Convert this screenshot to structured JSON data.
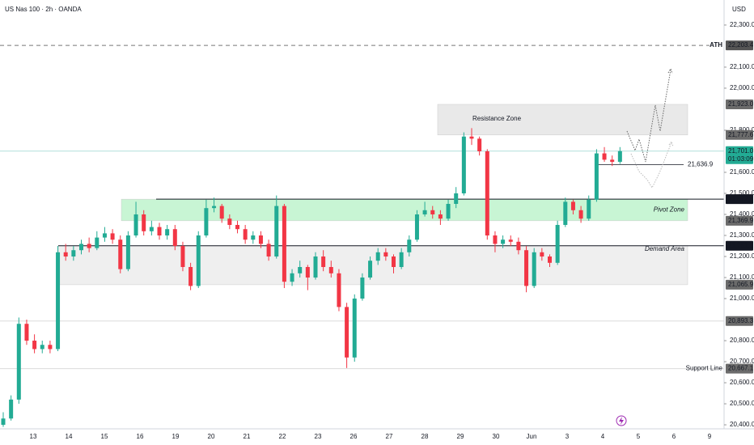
{
  "chart_data": {
    "type": "candlestick",
    "title": "US Nas 100 · 2h · OANDA",
    "currency": "USD",
    "up_color": "#22ab94",
    "down_color": "#f23645",
    "ylim": [
      20381,
      22419
    ],
    "yticks": [
      {
        "value": 22300,
        "label": "22,300.0"
      },
      {
        "value": 22100,
        "label": "22,100.0"
      },
      {
        "value": 22000,
        "label": "22,000.0"
      },
      {
        "value": 21800,
        "label": "21,800.0"
      },
      {
        "value": 21600,
        "label": "21,600.0"
      },
      {
        "value": 21500,
        "label": "21,500.0"
      },
      {
        "value": 21400,
        "label": "21,400.0"
      },
      {
        "value": 21300,
        "label": "21,300.0"
      },
      {
        "value": 21200,
        "label": "21,200.0"
      },
      {
        "value": 21100,
        "label": "21,100.0"
      },
      {
        "value": 21000,
        "label": "21,000.0"
      },
      {
        "value": 20800,
        "label": "20,800.0"
      },
      {
        "value": 20700,
        "label": "20,700.0"
      },
      {
        "value": 20600,
        "label": "20,600.0"
      },
      {
        "value": 20500,
        "label": "20,500.0"
      },
      {
        "value": 20400,
        "label": "20,400.0"
      }
    ],
    "categories": [
      "13",
      "14",
      "15",
      "16",
      "19",
      "20",
      "21",
      "22",
      "23",
      "26",
      "27",
      "28",
      "29",
      "30",
      "Jun",
      "3",
      "4",
      "5",
      "6",
      "9"
    ],
    "candles": [
      [
        20400,
        20460,
        20390,
        20430
      ],
      [
        20430,
        20540,
        20420,
        20520
      ],
      [
        20520,
        20910,
        20500,
        20880
      ],
      [
        20880,
        20900,
        20780,
        20800
      ],
      [
        20800,
        20830,
        20740,
        20760
      ],
      [
        20760,
        20800,
        20740,
        20780
      ],
      [
        20780,
        20800,
        20740,
        20760
      ],
      [
        20760,
        21250,
        20750,
        21220
      ],
      [
        21220,
        21260,
        21180,
        21200
      ],
      [
        21200,
        21250,
        21180,
        21230
      ],
      [
        21230,
        21280,
        21210,
        21260
      ],
      [
        21260,
        21290,
        21220,
        21240
      ],
      [
        21240,
        21320,
        21230,
        21290
      ],
      [
        21290,
        21340,
        21270,
        21310
      ],
      [
        21310,
        21330,
        21260,
        21280
      ],
      [
        21280,
        21300,
        21120,
        21140
      ],
      [
        21140,
        21320,
        21130,
        21300
      ],
      [
        21300,
        21460,
        21290,
        21400
      ],
      [
        21400,
        21420,
        21300,
        21320
      ],
      [
        21320,
        21370,
        21300,
        21340
      ],
      [
        21340,
        21360,
        21280,
        21300
      ],
      [
        21300,
        21350,
        21280,
        21330
      ],
      [
        21330,
        21350,
        21230,
        21250
      ],
      [
        21250,
        21270,
        21130,
        21150
      ],
      [
        21150,
        21170,
        21040,
        21060
      ],
      [
        21060,
        21320,
        21050,
        21300
      ],
      [
        21300,
        21470,
        21290,
        21430
      ],
      [
        21430,
        21480,
        21410,
        21440
      ],
      [
        21440,
        21450,
        21360,
        21380
      ],
      [
        21380,
        21400,
        21330,
        21350
      ],
      [
        21350,
        21370,
        21310,
        21330
      ],
      [
        21330,
        21350,
        21260,
        21280
      ],
      [
        21280,
        21320,
        21260,
        21300
      ],
      [
        21300,
        21320,
        21240,
        21260
      ],
      [
        21260,
        21280,
        21180,
        21200
      ],
      [
        21200,
        21490,
        21190,
        21440
      ],
      [
        21440,
        21450,
        21050,
        21080
      ],
      [
        21080,
        21140,
        21060,
        21120
      ],
      [
        21120,
        21180,
        21100,
        21150
      ],
      [
        21150,
        21160,
        21040,
        21100
      ],
      [
        21100,
        21220,
        21090,
        21200
      ],
      [
        21200,
        21230,
        21130,
        21150
      ],
      [
        21150,
        21180,
        21100,
        21120
      ],
      [
        21120,
        21140,
        20940,
        20960
      ],
      [
        20960,
        20980,
        20670,
        20720
      ],
      [
        20720,
        21020,
        20700,
        21000
      ],
      [
        21000,
        21120,
        20990,
        21100
      ],
      [
        21100,
        21200,
        21090,
        21180
      ],
      [
        21180,
        21240,
        21160,
        21220
      ],
      [
        21220,
        21240,
        21180,
        21200
      ],
      [
        21200,
        21210,
        21120,
        21150
      ],
      [
        21150,
        21240,
        21140,
        21220
      ],
      [
        21220,
        21300,
        21200,
        21280
      ],
      [
        21280,
        21420,
        21270,
        21400
      ],
      [
        21400,
        21460,
        21390,
        21420
      ],
      [
        21420,
        21440,
        21380,
        21400
      ],
      [
        21400,
        21420,
        21350,
        21380
      ],
      [
        21380,
        21470,
        21370,
        21450
      ],
      [
        21450,
        21530,
        21430,
        21500
      ],
      [
        21500,
        21790,
        21490,
        21770
      ],
      [
        21770,
        21810,
        21730,
        21760
      ],
      [
        21760,
        21770,
        21680,
        21700
      ],
      [
        21700,
        21710,
        21280,
        21300
      ],
      [
        21300,
        21320,
        21220,
        21260
      ],
      [
        21260,
        21300,
        21240,
        21280
      ],
      [
        21280,
        21300,
        21250,
        21270
      ],
      [
        21270,
        21290,
        21210,
        21230
      ],
      [
        21230,
        21250,
        21030,
        21060
      ],
      [
        21060,
        21240,
        21050,
        21220
      ],
      [
        21220,
        21240,
        21180,
        21200
      ],
      [
        21200,
        21210,
        21150,
        21170
      ],
      [
        21170,
        21370,
        21160,
        21350
      ],
      [
        21350,
        21480,
        21340,
        21460
      ],
      [
        21460,
        21470,
        21400,
        21420
      ],
      [
        21420,
        21440,
        21360,
        21380
      ],
      [
        21380,
        21490,
        21370,
        21470
      ],
      [
        21470,
        21710,
        21460,
        21690
      ],
      [
        21690,
        21720,
        21650,
        21660
      ],
      [
        21660,
        21680,
        21630,
        21650
      ],
      [
        21650,
        21720,
        21640,
        21701
      ]
    ],
    "current_price": {
      "value": 21701.0,
      "label": "21,701.0"
    },
    "countdown": "01:03:09",
    "current_color": "#22ab94",
    "levels": [
      {
        "value": 22203.4,
        "label": "22,203.4",
        "color": "#555555",
        "line": "dashed",
        "name": "ATH"
      },
      {
        "value": 21923.0,
        "label": "21,923.0",
        "color": "#6b6b6b"
      },
      {
        "value": 21777.6,
        "label": "21,777.6",
        "color": "#6b6b6b"
      },
      {
        "value": 21472.4,
        "label": "21,472.4",
        "color": "#131722",
        "line": "solid"
      },
      {
        "value": 21369.9,
        "label": "21,369.9",
        "color": "#6b6b6b"
      },
      {
        "value": 21251.1,
        "label": "21,251.1",
        "color": "#131722",
        "line": "solid"
      },
      {
        "value": 21065.9,
        "label": "21,065.9",
        "color": "#6b6b6b"
      },
      {
        "value": 20893.3,
        "label": "20,893.3",
        "color": "#6b6b6b",
        "line": "faint"
      },
      {
        "value": 20667.1,
        "label": "20,667.1",
        "color": "#6b6b6b",
        "line": "faint",
        "name": "Support Line"
      }
    ],
    "zones": [
      {
        "name": "Resistance Zone",
        "from": 21777.6,
        "to": 21923.0,
        "color": "#e9e9e9"
      },
      {
        "name": "Pivot Zone",
        "from": 21369.9,
        "to": 21472.4,
        "color": "#c8f5d4"
      },
      {
        "name": "Demand Area",
        "from": 21065.9,
        "to": 21251.1,
        "color": "#efefef"
      }
    ],
    "annotation": {
      "value": 21636.9,
      "label": "21,636.9"
    }
  }
}
